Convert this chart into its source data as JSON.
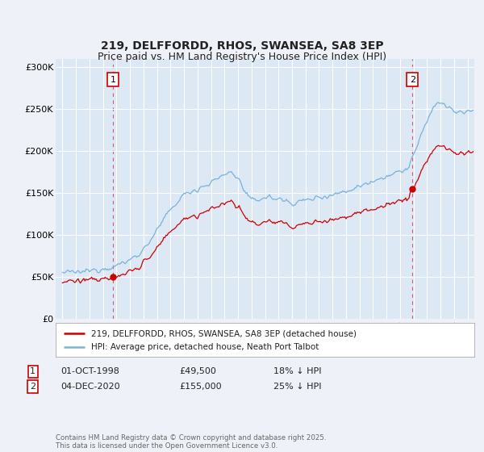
{
  "title": "219, DELFFORDD, RHOS, SWANSEA, SA8 3EP",
  "subtitle": "Price paid vs. HM Land Registry's House Price Index (HPI)",
  "bg_color": "#eef2f8",
  "plot_bg_color": "#dde8f5",
  "hpi_color": "#7ab3d8",
  "price_color": "#cc0000",
  "vline_color": "#cc0000",
  "legend_label_price": "219, DELFFORDD, RHOS, SWANSEA, SA8 3EP (detached house)",
  "legend_label_hpi": "HPI: Average price, detached house, Neath Port Talbot",
  "table_row1": [
    "1",
    "01-OCT-1998",
    "£49,500",
    "18% ↓ HPI"
  ],
  "table_row2": [
    "2",
    "04-DEC-2020",
    "£155,000",
    "25% ↓ HPI"
  ],
  "footer": "Contains HM Land Registry data © Crown copyright and database right 2025.\nThis data is licensed under the Open Government Licence v3.0.",
  "ylim": [
    0,
    310000
  ],
  "yticks": [
    0,
    50000,
    100000,
    150000,
    200000,
    250000,
    300000
  ],
  "ytick_labels": [
    "£0",
    "£50K",
    "£100K",
    "£150K",
    "£200K",
    "£250K",
    "£300K"
  ],
  "xmin": 1994.5,
  "xmax": 2025.5,
  "sale1_year": 1998.75,
  "sale1_price": 49500,
  "sale2_year": 2020.917,
  "sale2_price": 155000,
  "title_fontsize": 10,
  "subtitle_fontsize": 9
}
